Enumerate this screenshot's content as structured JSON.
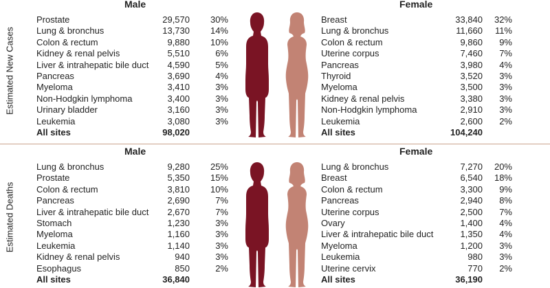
{
  "new_cases": {
    "side_label": "Estimated New Cases",
    "male": {
      "heading": "Male",
      "rows": [
        {
          "site": "Prostate",
          "count": "29,570",
          "pct": "30%"
        },
        {
          "site": "Lung & bronchus",
          "count": "13,730",
          "pct": "14%"
        },
        {
          "site": "Colon & rectum",
          "count": "9,880",
          "pct": "10%"
        },
        {
          "site": "Kidney & renal pelvis",
          "count": "5,510",
          "pct": "6%"
        },
        {
          "site": "Liver & intrahepatic bile duct",
          "count": "4,590",
          "pct": "5%"
        },
        {
          "site": "Pancreas",
          "count": "3,690",
          "pct": "4%"
        },
        {
          "site": "Myeloma",
          "count": "3,410",
          "pct": "3%"
        },
        {
          "site": "Non-Hodgkin lymphoma",
          "count": "3,400",
          "pct": "3%"
        },
        {
          "site": "Urinary bladder",
          "count": "3,160",
          "pct": "3%"
        },
        {
          "site": "Leukemia",
          "count": "3,080",
          "pct": "3%"
        }
      ],
      "total_label": "All sites",
      "total_count": "98,020"
    },
    "female": {
      "heading": "Female",
      "rows": [
        {
          "site": "Breast",
          "count": "33,840",
          "pct": "32%"
        },
        {
          "site": "Lung & bronchus",
          "count": "11,660",
          "pct": "11%"
        },
        {
          "site": "Colon & rectum",
          "count": "9,860",
          "pct": "9%"
        },
        {
          "site": "Uterine corpus",
          "count": "7,460",
          "pct": "7%"
        },
        {
          "site": "Pancreas",
          "count": "3,980",
          "pct": "4%"
        },
        {
          "site": "Thyroid",
          "count": "3,520",
          "pct": "3%"
        },
        {
          "site": "Myeloma",
          "count": "3,500",
          "pct": "3%"
        },
        {
          "site": "Kidney & renal pelvis",
          "count": "3,380",
          "pct": "3%"
        },
        {
          "site": "Non-Hodgkin lymphoma",
          "count": "2,910",
          "pct": "3%"
        },
        {
          "site": "Leukemia",
          "count": "2,600",
          "pct": "2%"
        }
      ],
      "total_label": "All sites",
      "total_count": "104,240"
    }
  },
  "deaths": {
    "side_label": "Estimated Deaths",
    "male": {
      "heading": "Male",
      "rows": [
        {
          "site": "Lung & bronchus",
          "count": "9,280",
          "pct": "25%"
        },
        {
          "site": "Prostate",
          "count": "5,350",
          "pct": "15%"
        },
        {
          "site": "Colon & rectum",
          "count": "3,810",
          "pct": "10%"
        },
        {
          "site": "Pancreas",
          "count": "2,690",
          "pct": "7%"
        },
        {
          "site": "Liver & intrahepatic bile duct",
          "count": "2,670",
          "pct": "7%"
        },
        {
          "site": "Stomach",
          "count": "1,230",
          "pct": "3%"
        },
        {
          "site": "Myeloma",
          "count": "1,160",
          "pct": "3%"
        },
        {
          "site": "Leukemia",
          "count": "1,140",
          "pct": "3%"
        },
        {
          "site": "Kidney & renal pelvis",
          "count": "940",
          "pct": "3%"
        },
        {
          "site": "Esophagus",
          "count": "850",
          "pct": "2%"
        }
      ],
      "total_label": "All sites",
      "total_count": "36,840"
    },
    "female": {
      "heading": "Female",
      "rows": [
        {
          "site": "Lung & bronchus",
          "count": "7,270",
          "pct": "20%"
        },
        {
          "site": "Breast",
          "count": "6,540",
          "pct": "18%"
        },
        {
          "site": "Colon & rectum",
          "count": "3,300",
          "pct": "9%"
        },
        {
          "site": "Pancreas",
          "count": "2,940",
          "pct": "8%"
        },
        {
          "site": "Uterine corpus",
          "count": "2,500",
          "pct": "7%"
        },
        {
          "site": "Ovary",
          "count": "1,400",
          "pct": "4%"
        },
        {
          "site": "Liver & intrahepatic bile duct",
          "count": "1,350",
          "pct": "4%"
        },
        {
          "site": "Myeloma",
          "count": "1,200",
          "pct": "3%"
        },
        {
          "site": "Leukemia",
          "count": "980",
          "pct": "3%"
        },
        {
          "site": "Uterine cervix",
          "count": "770",
          "pct": "2%"
        }
      ],
      "total_label": "All sites",
      "total_count": "36,190"
    }
  },
  "colors": {
    "male_figure": "#7a1424",
    "female_figure": "#c28374",
    "divider": "#c9a08a"
  },
  "icons": {
    "male": "male-silhouette-icon",
    "female": "female-silhouette-icon"
  }
}
